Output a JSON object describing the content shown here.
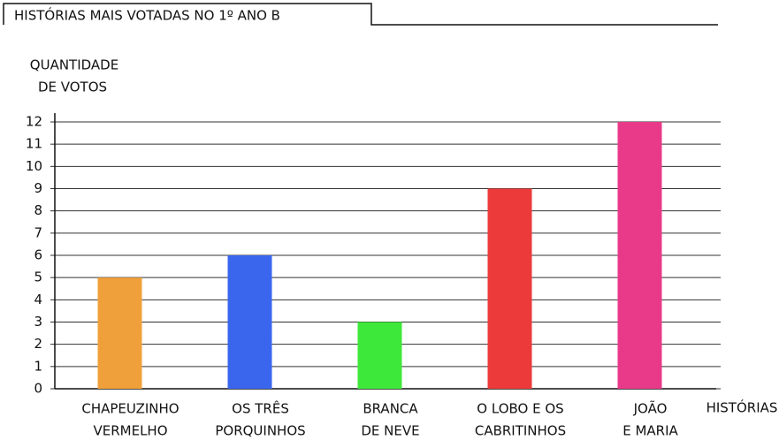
{
  "chart_data": {
    "type": "bar",
    "title": "HISTÓRIAS MAIS VOTADAS NO 1º ANO B",
    "y_label": [
      "QUANTIDADE",
      "DE VOTOS"
    ],
    "x_label": "HISTÓRIAS",
    "categories": [
      [
        "CHAPEUZINHO",
        "VERMELHO"
      ],
      [
        "OS TRÊS",
        "PORQUINHOS"
      ],
      [
        "BRANCA",
        "DE NEVE"
      ],
      [
        "O LOBO E OS",
        "CABRITINHOS"
      ],
      [
        "JOÃO",
        "E MARIA"
      ]
    ],
    "values": [
      5,
      6,
      3,
      9,
      12
    ],
    "colors": [
      "#f0a03a",
      "#3a66ee",
      "#3ee83a",
      "#ec3a3a",
      "#e93a8a"
    ],
    "ylim": [
      0,
      12
    ],
    "yticks": [
      0,
      1,
      2,
      3,
      4,
      5,
      6,
      7,
      8,
      9,
      10,
      11,
      12
    ],
    "grid": true
  }
}
